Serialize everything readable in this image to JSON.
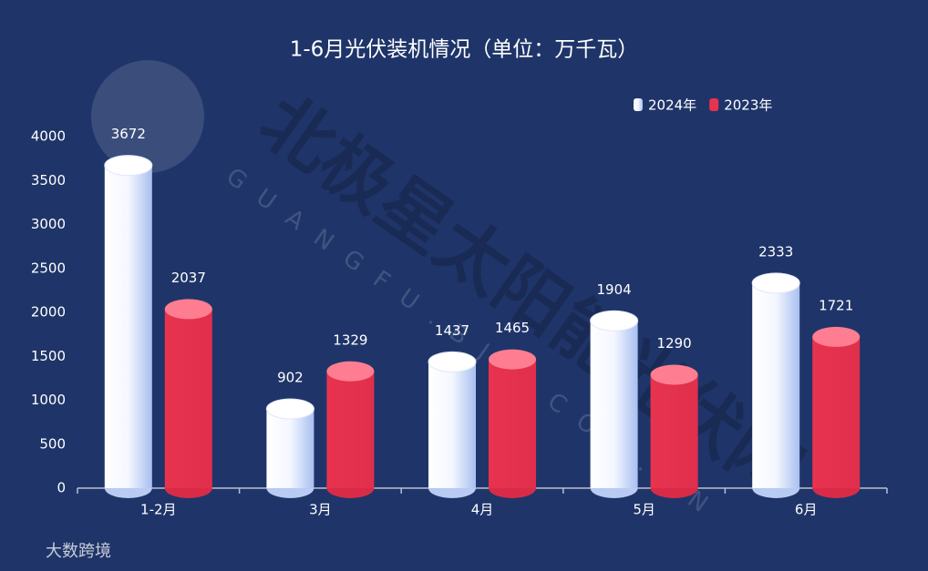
{
  "chart_data": {
    "type": "bar",
    "title": "1-6月光伏装机情况（单位：万千瓦）",
    "categories": [
      "1-2月",
      "3月",
      "4月",
      "5月",
      "6月"
    ],
    "series": [
      {
        "name": "2024年",
        "color": "#ffffff",
        "values": [
          3672,
          902,
          1437,
          1904,
          2333
        ]
      },
      {
        "name": "2023年",
        "color": "#e8334f",
        "values": [
          2037,
          1329,
          1465,
          1290,
          1721
        ]
      }
    ],
    "ylim": [
      0,
      4000
    ],
    "yticks": [
      0,
      500,
      1000,
      1500,
      2000,
      2500,
      3000,
      3500,
      4000
    ],
    "grid": false,
    "legend": "top-right",
    "watermarks": [
      "北极星太阳能光伏网",
      "GUANGFU.BJX.COM.CN",
      "大数跨境"
    ]
  }
}
